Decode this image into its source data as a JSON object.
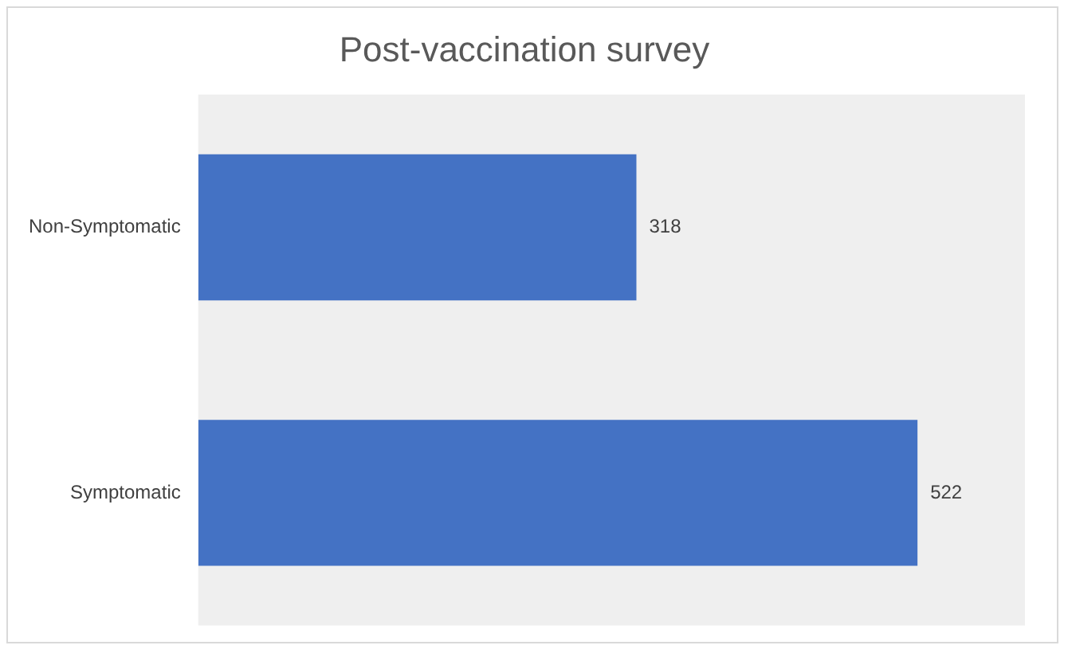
{
  "chart_data": {
    "type": "bar",
    "title": "Post-vaccination survey",
    "orientation": "horizontal",
    "categories": [
      "Non-Symptomatic",
      "Symptomatic"
    ],
    "values": [
      318,
      522
    ],
    "color": "#4472c4",
    "data_labels": true,
    "legend": false
  }
}
